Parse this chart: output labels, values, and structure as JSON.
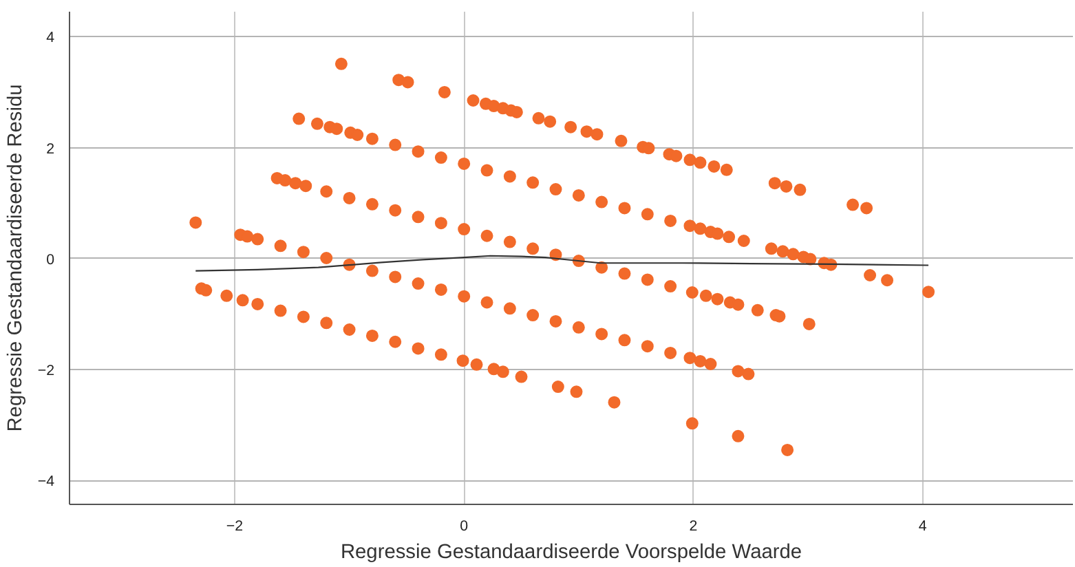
{
  "chart_data": {
    "type": "scatter",
    "xlabel": "Regressie Gestandaardiseerde Voorspelde Waarde",
    "ylabel": "Regressie Gestandaardiseerde Residu",
    "xlim": [
      -3.44,
      5.31
    ],
    "ylim": [
      -4.43,
      4.45
    ],
    "xticks": [
      -2,
      0,
      2,
      4
    ],
    "yticks": [
      -4,
      -2,
      0,
      2,
      4
    ],
    "grid": true,
    "series": [
      {
        "color": "#f26a2a",
        "marker": "circle",
        "x": [
          -1.07,
          -0.57,
          -0.49,
          -0.17,
          0.08,
          0.19,
          0.26,
          0.34,
          0.41,
          0.46,
          0.65,
          0.75,
          0.93,
          1.07,
          1.16,
          1.37,
          1.56,
          1.61,
          1.79,
          1.85,
          1.97,
          2.06,
          2.18,
          2.29,
          2.71,
          2.81,
          2.93,
          3.39,
          3.51,
          -1.44,
          -1.28,
          -1.17,
          -1.11,
          -0.99,
          -0.93,
          -0.8,
          -0.6,
          -0.4,
          -0.2,
          0,
          0.2,
          0.4,
          0.6,
          0.8,
          1.0,
          1.2,
          1.4,
          1.6,
          1.8,
          1.97,
          2.06,
          2.15,
          2.21,
          2.31,
          2.44,
          2.68,
          2.78,
          2.87,
          2.96,
          3.02,
          3.14,
          3.2,
          3.54,
          3.69,
          4.05,
          -1.63,
          -1.56,
          -1.47,
          -1.38,
          -1.2,
          -1.0,
          -0.8,
          -0.6,
          -0.4,
          -0.2,
          0,
          0.2,
          0.4,
          0.6,
          0.8,
          1.0,
          1.2,
          1.4,
          1.6,
          1.8,
          1.99,
          2.11,
          2.21,
          2.32,
          2.39,
          2.56,
          2.72,
          2.75,
          3.01,
          -2.34,
          -1.95,
          -1.89,
          -1.8,
          -1.6,
          -1.4,
          -1.2,
          -1.0,
          -0.8,
          -0.6,
          -0.4,
          -0.2,
          0,
          0.2,
          0.4,
          0.6,
          0.8,
          1.0,
          1.2,
          1.4,
          1.6,
          1.8,
          1.97,
          2.06,
          2.15,
          2.39,
          2.48,
          -2.29,
          -2.25,
          -2.07,
          -1.93,
          -1.8,
          -1.6,
          -1.4,
          -1.2,
          -1.0,
          -0.8,
          -0.6,
          -0.4,
          -0.2,
          -0.01,
          0.11,
          0.26,
          0.34,
          0.5,
          0.82,
          0.98,
          1.31,
          1.99,
          2.39,
          2.82
        ],
        "values": [
          3.51,
          3.22,
          3.18,
          3.0,
          2.85,
          2.79,
          2.75,
          2.71,
          2.67,
          2.64,
          2.53,
          2.47,
          2.37,
          2.29,
          2.24,
          2.12,
          2.01,
          1.99,
          1.88,
          1.85,
          1.78,
          1.73,
          1.66,
          1.6,
          1.36,
          1.3,
          1.24,
          0.97,
          0.91,
          2.52,
          2.43,
          2.37,
          2.34,
          2.27,
          2.23,
          2.16,
          2.05,
          1.93,
          1.82,
          1.71,
          1.59,
          1.48,
          1.37,
          1.25,
          1.14,
          1.02,
          0.91,
          0.8,
          0.68,
          0.59,
          0.54,
          0.48,
          0.45,
          0.39,
          0.32,
          0.18,
          0.13,
          0.08,
          0.03,
          -0.01,
          -0.08,
          -0.11,
          -0.3,
          -0.39,
          -0.6,
          1.45,
          1.41,
          1.36,
          1.31,
          1.21,
          1.09,
          0.98,
          0.87,
          0.75,
          0.64,
          0.53,
          0.41,
          0.3,
          0.18,
          0.07,
          -0.04,
          -0.16,
          -0.27,
          -0.38,
          -0.5,
          -0.61,
          -0.67,
          -0.73,
          -0.79,
          -0.83,
          -0.93,
          -1.02,
          -1.04,
          -1.18,
          0.65,
          0.43,
          0.4,
          0.35,
          0.23,
          0.12,
          0.01,
          -0.11,
          -0.22,
          -0.33,
          -0.45,
          -0.56,
          -0.68,
          -0.79,
          -0.9,
          -1.02,
          -1.13,
          -1.24,
          -1.36,
          -1.47,
          -1.58,
          -1.7,
          -1.79,
          -1.85,
          -1.9,
          -2.03,
          -2.08,
          -0.54,
          -0.57,
          -0.67,
          -0.75,
          -0.82,
          -0.94,
          -1.05,
          -1.16,
          -1.28,
          -1.39,
          -1.5,
          -1.62,
          -1.73,
          -1.84,
          -1.91,
          -1.99,
          -2.04,
          -2.13,
          -2.31,
          -2.4,
          -2.59,
          -2.97,
          -3.2,
          -3.45
        ]
      },
      {
        "type": "line",
        "color": "#333333",
        "marker": "none",
        "x": [
          -2.34,
          -1.8,
          -1.27,
          -0.72,
          -0.36,
          0.0,
          0.23,
          0.5,
          0.71,
          0.95,
          1.19,
          1.5,
          1.91,
          2.5,
          3.2,
          4.05
        ],
        "values": [
          -0.22,
          -0.2,
          -0.16,
          -0.07,
          -0.02,
          0.02,
          0.05,
          0.04,
          0.02,
          -0.03,
          -0.08,
          -0.08,
          -0.08,
          -0.09,
          -0.1,
          -0.12
        ]
      }
    ]
  }
}
